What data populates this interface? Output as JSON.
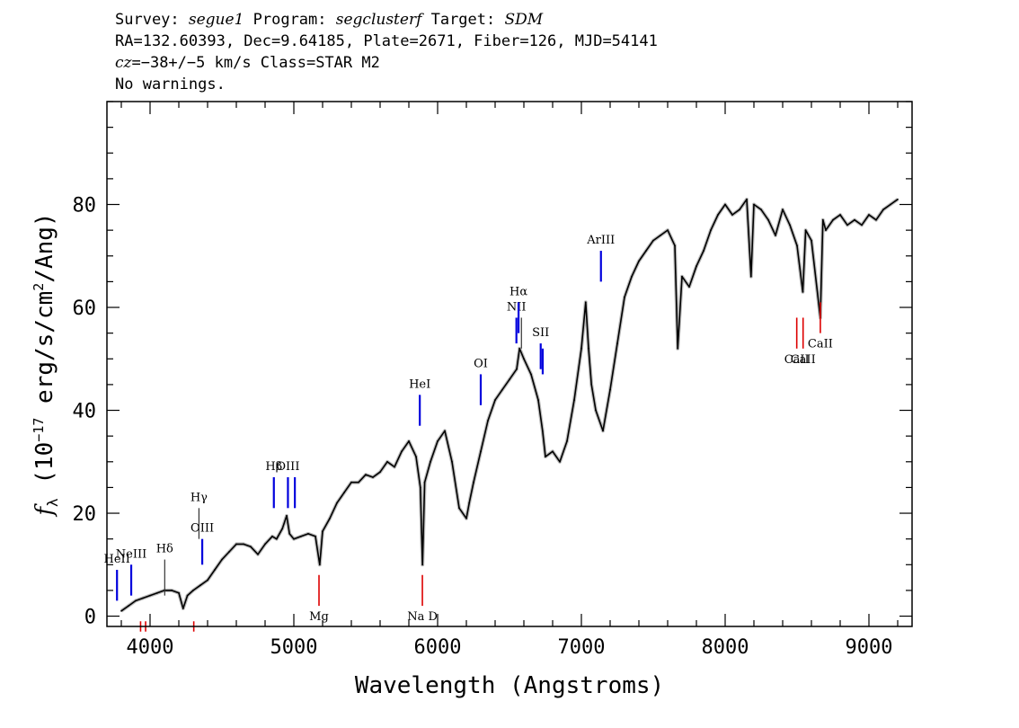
{
  "header": {
    "survey_label": "Survey: ",
    "survey": "segue1",
    "program_label": " Program: ",
    "program": "segclusterf",
    "target_label": " Target: ",
    "target": "SDM",
    "coords": "RA=132.60393, Dec=9.64185, Plate=2671, Fiber=126, MJD=54141",
    "cz_label": "cz",
    "cz_value": "=−38+/−5",
    "cz_rest": " km/s Class=STAR M2",
    "warnings": "No warnings."
  },
  "chart_data": {
    "type": "line",
    "xlabel": "Wavelength (Angstroms)",
    "ylabel_prefix": "f",
    "ylabel_sub": "λ",
    "ylabel_mid": " (10",
    "ylabel_exp": "−17",
    "ylabel_end": " erg/s/cm",
    "ylabel_exp2": "2",
    "ylabel_tail": "/Ang)",
    "xlim": [
      3700,
      9300
    ],
    "ylim": [
      -2,
      100
    ],
    "x_ticks": [
      4000,
      5000,
      6000,
      7000,
      8000,
      9000
    ],
    "y_ticks": [
      0,
      20,
      40,
      60,
      80
    ],
    "x_ticklabels": [
      "4000",
      "5000",
      "6000",
      "7000",
      "8000",
      "9000"
    ],
    "y_ticklabels": [
      "0",
      "20",
      "40",
      "60",
      "80"
    ],
    "series": [
      {
        "color": "#000000",
        "x": [
          3800,
          3850,
          3900,
          3950,
          4000,
          4050,
          4100,
          4150,
          4200,
          4230,
          4260,
          4300,
          4350,
          4400,
          4450,
          4500,
          4550,
          4600,
          4650,
          4700,
          4750,
          4800,
          4850,
          4880,
          4920,
          4950,
          4970,
          5000,
          5050,
          5100,
          5150,
          5180,
          5200,
          5250,
          5300,
          5350,
          5400,
          5450,
          5500,
          5550,
          5600,
          5650,
          5700,
          5750,
          5800,
          5850,
          5880,
          5895,
          5910,
          5950,
          6000,
          6050,
          6100,
          6150,
          6200,
          6220,
          6250,
          6300,
          6350,
          6400,
          6450,
          6500,
          6550,
          6570,
          6600,
          6650,
          6700,
          6730,
          6750,
          6800,
          6850,
          6900,
          6950,
          7000,
          7030,
          7050,
          7070,
          7100,
          7150,
          7200,
          7250,
          7300,
          7350,
          7400,
          7450,
          7500,
          7550,
          7600,
          7650,
          7670,
          7700,
          7750,
          7800,
          7850,
          7900,
          7950,
          8000,
          8050,
          8100,
          8150,
          8180,
          8200,
          8250,
          8300,
          8350,
          8400,
          8450,
          8500,
          8540,
          8560,
          8600,
          8662,
          8680,
          8700,
          8750,
          8800,
          8850,
          8900,
          8950,
          9000,
          9050,
          9100,
          9150,
          9200
        ],
        "y": [
          1,
          2,
          3,
          3.5,
          4,
          4.5,
          5,
          5,
          4.5,
          1.5,
          4,
          5,
          6,
          7,
          9,
          11,
          12.5,
          14,
          14,
          13.5,
          12,
          14,
          15.5,
          15,
          17,
          19.5,
          16,
          15,
          15.5,
          16,
          15.5,
          10,
          16.5,
          19,
          22,
          24,
          26,
          26,
          27.5,
          27,
          28,
          30,
          29,
          32,
          34,
          31,
          25,
          10,
          26,
          30,
          34,
          36,
          30,
          21,
          19,
          22,
          26,
          32,
          38,
          42,
          44,
          46,
          48,
          52,
          50,
          47,
          42,
          36,
          31,
          32,
          30,
          34,
          42,
          52,
          61,
          52,
          45,
          40,
          36,
          44,
          53,
          62,
          66,
          69,
          71,
          73,
          74,
          75,
          72,
          52,
          66,
          64,
          68,
          71,
          75,
          78,
          80,
          78,
          79,
          81,
          66,
          80,
          79,
          77,
          74,
          79,
          76,
          72,
          63,
          75,
          73,
          58,
          77,
          75,
          77,
          78,
          76,
          77,
          76,
          78,
          77,
          79,
          80,
          81
        ]
      }
    ],
    "lines_blue": [
      {
        "label": "HeII",
        "x": 3770,
        "y0": 3,
        "y1": 9
      },
      {
        "label": "NeIII",
        "x": 3869,
        "y0": 4,
        "y1": 10
      },
      {
        "label": "OIII",
        "x": 4363,
        "y0": 10,
        "y1": 15
      },
      {
        "label": "Hβ",
        "x": 4861,
        "y0": 21,
        "y1": 27
      },
      {
        "label": "OIII",
        "x": 4959,
        "y0": 21,
        "y1": 27
      },
      {
        "label": "OIII",
        "x": 5007,
        "y0": 21,
        "y1": 27
      },
      {
        "label": "HeI",
        "x": 5876,
        "y0": 37,
        "y1": 43
      },
      {
        "label": "OI",
        "x": 6300,
        "y0": 41,
        "y1": 47
      },
      {
        "label": "NII",
        "x": 6548,
        "y0": 53,
        "y1": 58
      },
      {
        "label": "Hα",
        "x": 6563,
        "y0": 55,
        "y1": 61
      },
      {
        "label": "SII",
        "x": 6717,
        "y0": 48,
        "y1": 53
      },
      {
        "label": "SII",
        "x": 6731,
        "y0": 47,
        "y1": 52
      },
      {
        "label": "ArIII",
        "x": 7136,
        "y0": 65,
        "y1": 71
      }
    ],
    "lines_black": [
      {
        "label": "Hδ",
        "x": 4102,
        "y0": 4,
        "y1": 11
      },
      {
        "label": "Hγ",
        "x": 4340,
        "y0": 15,
        "y1": 21
      },
      {
        "label": "NII",
        "x": 6583,
        "y0": 52,
        "y1": 58
      }
    ],
    "lines_red": [
      {
        "label": "Mg",
        "x": 5175,
        "y0": 2,
        "y1": 8
      },
      {
        "label": "Na D",
        "x": 5894,
        "y0": 2,
        "y1": 8
      },
      {
        "label": "CaII",
        "x": 8498,
        "y0": 52,
        "y1": 58
      },
      {
        "label": "CaII",
        "x": 8542,
        "y0": 52,
        "y1": 58
      },
      {
        "label": "CaII",
        "x": 8662,
        "y0": 55,
        "y1": 61
      },
      {
        "label": "",
        "x": 3934,
        "y0": -3,
        "y1": -1
      },
      {
        "label": "",
        "x": 3969,
        "y0": -3,
        "y1": -1
      },
      {
        "label": "",
        "x": 4304,
        "y0": -3,
        "y1": -1
      }
    ]
  }
}
